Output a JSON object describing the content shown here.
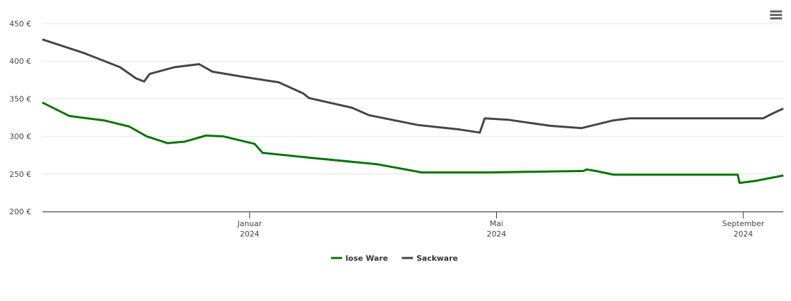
{
  "chart_data": {
    "type": "line",
    "x_unit_note_free": null,
    "xlim": [
      -3.36,
      8.65
    ],
    "xticks": [
      {
        "value": 0,
        "label": "Januar 2024"
      },
      {
        "value": 4,
        "label": "Mai 2024"
      },
      {
        "value": 8,
        "label": "September 2024"
      }
    ],
    "ylim": [
      200,
      450
    ],
    "yticks": [
      {
        "value": 200,
        "label": "200 €"
      },
      {
        "value": 250,
        "label": "250 €"
      },
      {
        "value": 300,
        "label": "300 €"
      },
      {
        "value": 350,
        "label": "350 €"
      },
      {
        "value": 400,
        "label": "400 €"
      },
      {
        "value": 450,
        "label": "450 €"
      }
    ],
    "grid": true,
    "legend": "bottom",
    "series": [
      {
        "name": "lose Ware",
        "color": "#007400",
        "x": [
          -3.36,
          -2.92,
          -2.35,
          -1.95,
          -1.67,
          -1.33,
          -1.05,
          -0.71,
          -0.43,
          0.08,
          0.21,
          1.04,
          2.06,
          2.79,
          3.86,
          5.41,
          5.46,
          5.61,
          5.9,
          7.91,
          7.94,
          8.21,
          8.65
        ],
        "values": [
          345,
          327,
          321,
          313,
          300,
          291,
          293,
          301,
          300,
          290,
          278,
          271,
          263,
          252,
          252,
          254,
          256,
          254,
          249,
          249,
          238,
          241,
          248
        ]
      },
      {
        "name": "Sackware",
        "color": "#444444",
        "x": [
          -3.36,
          -2.69,
          -2.1,
          -1.84,
          -1.71,
          -1.62,
          -1.22,
          -0.82,
          -0.6,
          -0.09,
          0.47,
          0.87,
          0.96,
          1.66,
          1.94,
          2.73,
          3.41,
          3.73,
          3.81,
          4.2,
          4.87,
          5.38,
          5.88,
          6.16,
          8.32,
          8.49,
          8.65
        ],
        "values": [
          429,
          411,
          392,
          377,
          373,
          383,
          392,
          396,
          386,
          379,
          372,
          357,
          351,
          338,
          328,
          315,
          309,
          305,
          324,
          322,
          314,
          311,
          321,
          324,
          324,
          331,
          337
        ]
      }
    ]
  }
}
